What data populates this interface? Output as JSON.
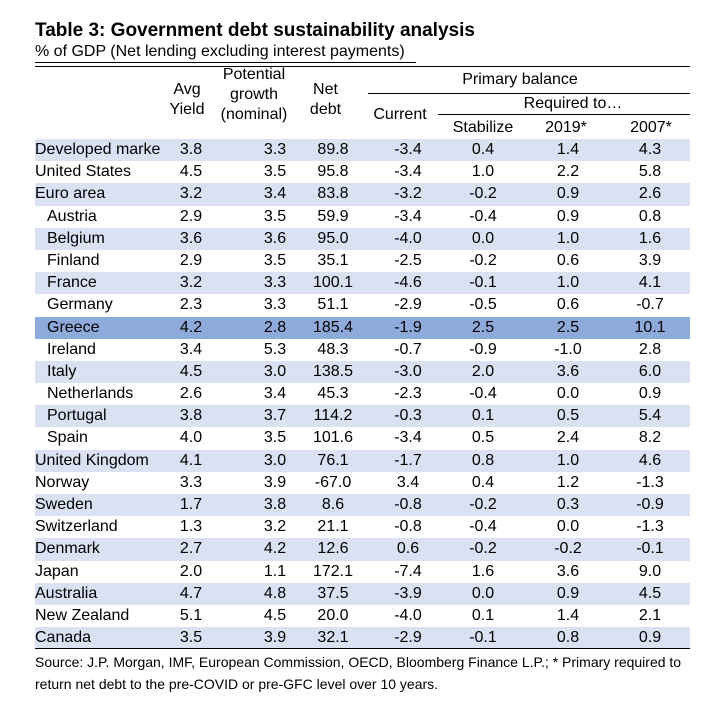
{
  "title": "Table 3: Government debt sustainability analysis",
  "subtitle": "% of GDP (Net lending excluding interest payments)",
  "headers": {
    "avg_yield": [
      "Avg",
      "Yield"
    ],
    "potential_growth": [
      "Potential",
      "growth",
      "(nominal)"
    ],
    "net_debt": [
      "Net",
      "debt"
    ],
    "primary_balance": "Primary balance",
    "current": "Current",
    "required_to": "Required to…",
    "stabilize": "Stabilize",
    "y2019": "2019*",
    "y2007": "2007*"
  },
  "rows": [
    {
      "name": "Developed marke",
      "yield": "3.8",
      "growth": "3.3",
      "debt": "89.8",
      "current": "-3.4",
      "stabilize": "0.4",
      "r2019": "1.4",
      "r2007": "4.3"
    },
    {
      "name": "United States",
      "yield": "4.5",
      "growth": "3.5",
      "debt": "95.8",
      "current": "-3.4",
      "stabilize": "1.0",
      "r2019": "2.2",
      "r2007": "5.8"
    },
    {
      "name": "Euro area",
      "yield": "3.2",
      "growth": "3.4",
      "debt": "83.8",
      "current": "-3.2",
      "stabilize": "-0.2",
      "r2019": "0.9",
      "r2007": "2.6"
    },
    {
      "name": "Austria",
      "yield": "2.9",
      "growth": "3.5",
      "debt": "59.9",
      "current": "-3.4",
      "stabilize": "-0.4",
      "r2019": "0.9",
      "r2007": "0.8"
    },
    {
      "name": "Belgium",
      "yield": "3.6",
      "growth": "3.6",
      "debt": "95.0",
      "current": "-4.0",
      "stabilize": "0.0",
      "r2019": "1.0",
      "r2007": "1.6"
    },
    {
      "name": "Finland",
      "yield": "2.9",
      "growth": "3.5",
      "debt": "35.1",
      "current": "-2.5",
      "stabilize": "-0.2",
      "r2019": "0.6",
      "r2007": "3.9"
    },
    {
      "name": "France",
      "yield": "3.2",
      "growth": "3.3",
      "debt": "100.1",
      "current": "-4.6",
      "stabilize": "-0.1",
      "r2019": "1.0",
      "r2007": "4.1"
    },
    {
      "name": "Germany",
      "yield": "2.3",
      "growth": "3.3",
      "debt": "51.1",
      "current": "-2.9",
      "stabilize": "-0.5",
      "r2019": "0.6",
      "r2007": "-0.7"
    },
    {
      "name": "Greece",
      "yield": "4.2",
      "growth": "2.8",
      "debt": "185.4",
      "current": "-1.9",
      "stabilize": "2.5",
      "r2019": "2.5",
      "r2007": "10.1"
    },
    {
      "name": "Ireland",
      "yield": "3.4",
      "growth": "5.3",
      "debt": "48.3",
      "current": "-0.7",
      "stabilize": "-0.9",
      "r2019": "-1.0",
      "r2007": "2.8"
    },
    {
      "name": "Italy",
      "yield": "4.5",
      "growth": "3.0",
      "debt": "138.5",
      "current": "-3.0",
      "stabilize": "2.0",
      "r2019": "3.6",
      "r2007": "6.0"
    },
    {
      "name": "Netherlands",
      "yield": "2.6",
      "growth": "3.4",
      "debt": "45.3",
      "current": "-2.3",
      "stabilize": "-0.4",
      "r2019": "0.0",
      "r2007": "0.9"
    },
    {
      "name": "Portugal",
      "yield": "3.8",
      "growth": "3.7",
      "debt": "114.2",
      "current": "-0.3",
      "stabilize": "0.1",
      "r2019": "0.5",
      "r2007": "5.4"
    },
    {
      "name": "Spain",
      "yield": "4.0",
      "growth": "3.5",
      "debt": "101.6",
      "current": "-3.4",
      "stabilize": "0.5",
      "r2019": "2.4",
      "r2007": "8.2"
    },
    {
      "name": "United Kingdom",
      "yield": "4.1",
      "growth": "3.0",
      "debt": "76.1",
      "current": "-1.7",
      "stabilize": "0.8",
      "r2019": "1.0",
      "r2007": "4.6"
    },
    {
      "name": "Norway",
      "yield": "3.3",
      "growth": "3.9",
      "debt": "-67.0",
      "current": "3.4",
      "stabilize": "0.4",
      "r2019": "1.2",
      "r2007": "-1.3"
    },
    {
      "name": "Sweden",
      "yield": "1.7",
      "growth": "3.8",
      "debt": "8.6",
      "current": "-0.8",
      "stabilize": "-0.2",
      "r2019": "0.3",
      "r2007": "-0.9"
    },
    {
      "name": "Switzerland",
      "yield": "1.3",
      "growth": "3.2",
      "debt": "21.1",
      "current": "-0.8",
      "stabilize": "-0.4",
      "r2019": "0.0",
      "r2007": "-1.3"
    },
    {
      "name": "Denmark",
      "yield": "2.7",
      "growth": "4.2",
      "debt": "12.6",
      "current": "0.6",
      "stabilize": "-0.2",
      "r2019": "-0.2",
      "r2007": "-0.1"
    },
    {
      "name": "Japan",
      "yield": "2.0",
      "growth": "1.1",
      "debt": "172.1",
      "current": "-7.4",
      "stabilize": "1.6",
      "r2019": "3.6",
      "r2007": "9.0"
    },
    {
      "name": "Australia",
      "yield": "4.7",
      "growth": "4.8",
      "debt": "37.5",
      "current": "-3.9",
      "stabilize": "0.0",
      "r2019": "0.9",
      "r2007": "4.5"
    },
    {
      "name": "New Zealand",
      "yield": "5.1",
      "growth": "4.5",
      "debt": "20.0",
      "current": "-4.0",
      "stabilize": "0.1",
      "r2019": "1.4",
      "r2007": "2.1"
    },
    {
      "name": "Canada",
      "yield": "3.5",
      "growth": "3.9",
      "debt": "32.1",
      "current": "-2.9",
      "stabilize": "-0.1",
      "r2019": "0.8",
      "r2007": "0.9"
    }
  ],
  "source": "Source: J.P. Morgan, IMF, European Commission, OECD, Bloomberg Finance L.P.; * Primary required to return net debt to the pre-COVID or pre-GFC level over 10 years.",
  "colors": {
    "shade": "#d9e1f2",
    "highlight": "#8eaadb"
  }
}
